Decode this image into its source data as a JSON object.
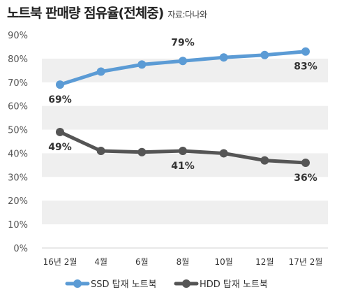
{
  "title": "노트북 판매량 점유율(전체중)",
  "source": "자료:다나와",
  "chart_data": {
    "type": "line",
    "categories": [
      "16년 2월",
      "4월",
      "6월",
      "8월",
      "10월",
      "12월",
      "17년 2월"
    ],
    "ylim": [
      0,
      90
    ],
    "yticks": [
      "0%",
      "10%",
      "20%",
      "30%",
      "40%",
      "50%",
      "60%",
      "70%",
      "80%",
      "90%"
    ],
    "grid": "horizontal-bands",
    "legend_position": "bottom",
    "series": [
      {
        "name": "SSD 탑재 노트북",
        "color": "#5b9bd5",
        "values": [
          69,
          74.5,
          77.5,
          79,
          80.5,
          81.5,
          83
        ],
        "labels": [
          {
            "index": 0,
            "text": "69%"
          },
          {
            "index": 3,
            "text": "79%"
          },
          {
            "index": 6,
            "text": "83%"
          }
        ]
      },
      {
        "name": "HDD 탑재 노트북",
        "color": "#555555",
        "values": [
          49,
          41,
          40.5,
          41,
          40,
          37,
          36
        ],
        "labels": [
          {
            "index": 0,
            "text": "49%"
          },
          {
            "index": 3,
            "text": "41%"
          },
          {
            "index": 6,
            "text": "36%"
          }
        ]
      }
    ]
  }
}
